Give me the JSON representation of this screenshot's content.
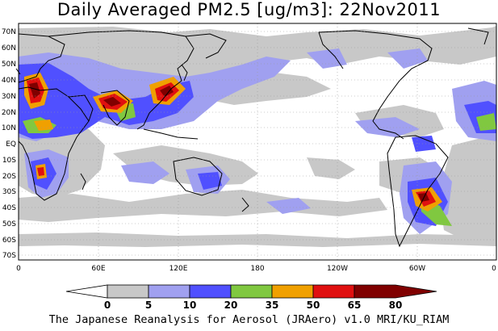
{
  "title": "Daily Averaged PM2.5 [ug/m3]: 22Nov2011",
  "footer": "The Japanese Reanalysis for Aerosol (JRAero) v1.0 MRI/KU_RIAM",
  "map": {
    "lat_labels": [
      "70N",
      "60N",
      "50N",
      "40N",
      "30N",
      "20N",
      "10N",
      "EQ",
      "10S",
      "20S",
      "30S",
      "40S",
      "50S",
      "60S",
      "70S"
    ],
    "lon_labels": [
      "0",
      "60E",
      "120E",
      "180",
      "120W",
      "60W",
      "0"
    ]
  },
  "colorbar": {
    "labels": [
      "0",
      "5",
      "10",
      "20",
      "35",
      "50",
      "65",
      "80"
    ],
    "colors": [
      "#ffffff",
      "#c8c8c8",
      "#a0a0f0",
      "#5050ff",
      "#80c840",
      "#f0a000",
      "#e01010",
      "#800000"
    ]
  },
  "colors": {
    "land_outline": "#000000",
    "grid": "#999999"
  }
}
